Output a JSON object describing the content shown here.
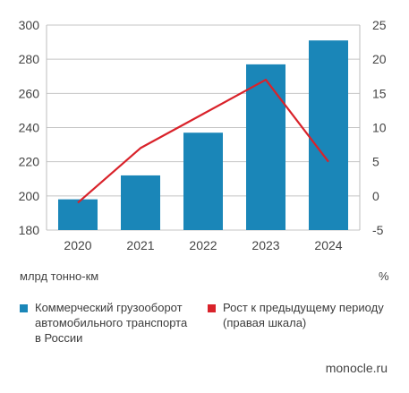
{
  "chart_data": {
    "type": "bar+line",
    "categories": [
      "2020",
      "2021",
      "2022",
      "2023",
      "2024"
    ],
    "series": [
      {
        "name": "Коммерческий грузооборот автомобильного транспорта в России",
        "type": "bar",
        "axis": "left",
        "color": "#1a86b8",
        "values": [
          198,
          212,
          237,
          277,
          291
        ]
      },
      {
        "name": "Рост к предыдущему периоду (правая шкала)",
        "type": "line",
        "axis": "right",
        "color": "#d9222a",
        "values": [
          -1,
          7,
          12,
          17,
          5
        ]
      }
    ],
    "left_axis": {
      "min": 180,
      "max": 300,
      "ticks": [
        180,
        200,
        220,
        240,
        260,
        280,
        300
      ],
      "unit_label": "млрд тонно-км"
    },
    "right_axis": {
      "min": -5,
      "max": 25,
      "ticks": [
        -5,
        0,
        5,
        10,
        15,
        20,
        25
      ],
      "unit_label": "%"
    },
    "grid": true,
    "legend_position": "bottom"
  },
  "legend": {
    "bar_lines": [
      "Коммерческий грузооборот",
      "автомобильного транспорта",
      "в России"
    ],
    "line_lines": [
      "Рост к предыдущему периоду",
      "(правая шкала)"
    ]
  },
  "source": "monocle.ru"
}
